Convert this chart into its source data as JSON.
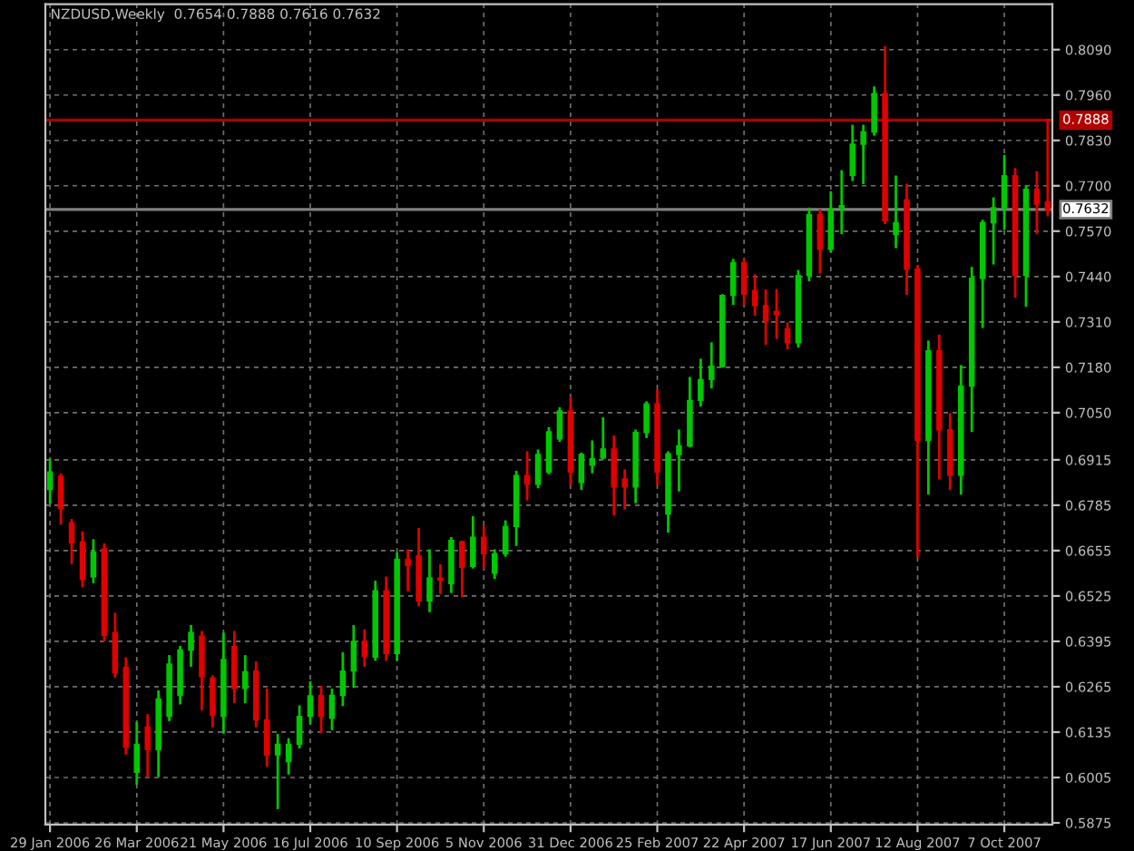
{
  "chart_data": {
    "type": "candlestick",
    "title": "NZDUSD,Weekly  0.7654 0.7888 0.7616 0.7632",
    "x": [
      "2006-01-29",
      "2006-02-05",
      "2006-02-12",
      "2006-02-19",
      "2006-02-26",
      "2006-03-05",
      "2006-03-12",
      "2006-03-19",
      "2006-03-26",
      "2006-04-02",
      "2006-04-09",
      "2006-04-16",
      "2006-04-23",
      "2006-04-30",
      "2006-05-07",
      "2006-05-14",
      "2006-05-21",
      "2006-05-28",
      "2006-06-04",
      "2006-06-11",
      "2006-06-18",
      "2006-06-25",
      "2006-07-02",
      "2006-07-09",
      "2006-07-16",
      "2006-07-23",
      "2006-07-30",
      "2006-08-06",
      "2006-08-13",
      "2006-08-20",
      "2006-08-27",
      "2006-09-03",
      "2006-09-10",
      "2006-09-17",
      "2006-09-24",
      "2006-10-01",
      "2006-10-08",
      "2006-10-15",
      "2006-10-22",
      "2006-10-29",
      "2006-11-05",
      "2006-11-12",
      "2006-11-19",
      "2006-11-26",
      "2006-12-03",
      "2006-12-10",
      "2006-12-17",
      "2006-12-24",
      "2006-12-31",
      "2007-01-07",
      "2007-01-14",
      "2007-01-21",
      "2007-01-28",
      "2007-02-04",
      "2007-02-11",
      "2007-02-18",
      "2007-02-25",
      "2007-03-04",
      "2007-03-11",
      "2007-03-18",
      "2007-03-25",
      "2007-04-01",
      "2007-04-08",
      "2007-04-15",
      "2007-04-22",
      "2007-04-29",
      "2007-05-06",
      "2007-05-13",
      "2007-05-20",
      "2007-05-27",
      "2007-06-03",
      "2007-06-10",
      "2007-06-17",
      "2007-06-24",
      "2007-07-01",
      "2007-07-08",
      "2007-07-15",
      "2007-07-22",
      "2007-07-29",
      "2007-08-05",
      "2007-08-12",
      "2007-08-19",
      "2007-08-26",
      "2007-09-02",
      "2007-09-09",
      "2007-09-16",
      "2007-09-23",
      "2007-09-30",
      "2007-10-07",
      "2007-10-14",
      "2007-10-21",
      "2007-10-28",
      "2007-11-04"
    ],
    "xlim": [
      "2006-01-26",
      "2007-11-07"
    ],
    "xticks": [
      {
        "value": "2006-01-29",
        "label": "29 Jan 2006"
      },
      {
        "value": "2006-03-26",
        "label": "26 Mar 2006"
      },
      {
        "value": "2006-05-21",
        "label": "21 May 2006"
      },
      {
        "value": "2006-07-16",
        "label": "16 Jul 2006"
      },
      {
        "value": "2006-09-10",
        "label": "10 Sep 2006"
      },
      {
        "value": "2006-11-05",
        "label": "5 Nov 2006"
      },
      {
        "value": "2006-12-31",
        "label": "31 Dec 2006"
      },
      {
        "value": "2007-02-25",
        "label": "25 Feb 2007"
      },
      {
        "value": "2007-04-22",
        "label": "22 Apr 2007"
      },
      {
        "value": "2007-06-17",
        "label": "17 Jun 2007"
      },
      {
        "value": "2007-08-12",
        "label": "12 Aug 2007"
      },
      {
        "value": "2007-10-07",
        "label": "7 Oct 2007"
      }
    ],
    "ohlc": [
      [
        0.683,
        0.6915,
        0.6793,
        0.688
      ],
      [
        0.6868,
        0.6872,
        0.6733,
        0.6776
      ],
      [
        0.6735,
        0.6742,
        0.662,
        0.6677
      ],
      [
        0.668,
        0.6707,
        0.6554,
        0.6572
      ],
      [
        0.658,
        0.6684,
        0.6565,
        0.6651
      ],
      [
        0.666,
        0.6672,
        0.6398,
        0.6412
      ],
      [
        0.642,
        0.6473,
        0.6294,
        0.6305
      ],
      [
        0.632,
        0.6346,
        0.6074,
        0.6092
      ],
      [
        0.602,
        0.6161,
        0.5988,
        0.61
      ],
      [
        0.615,
        0.6183,
        0.601,
        0.6085
      ],
      [
        0.6085,
        0.6251,
        0.601,
        0.623
      ],
      [
        0.618,
        0.6352,
        0.617,
        0.633
      ],
      [
        0.624,
        0.6378,
        0.6218,
        0.637
      ],
      [
        0.637,
        0.6438,
        0.6326,
        0.642
      ],
      [
        0.641,
        0.6421,
        0.6201,
        0.6294
      ],
      [
        0.629,
        0.6294,
        0.6152,
        0.6183
      ],
      [
        0.618,
        0.6416,
        0.6135,
        0.6343
      ],
      [
        0.638,
        0.6421,
        0.6222,
        0.626
      ],
      [
        0.626,
        0.6352,
        0.6222,
        0.6308
      ],
      [
        0.631,
        0.6334,
        0.6152,
        0.617
      ],
      [
        0.617,
        0.6256,
        0.604,
        0.6069
      ],
      [
        0.607,
        0.6126,
        0.5918,
        0.61
      ],
      [
        0.605,
        0.6114,
        0.6017,
        0.61
      ],
      [
        0.61,
        0.6208,
        0.6092,
        0.618
      ],
      [
        0.618,
        0.6277,
        0.6161,
        0.6239
      ],
      [
        0.624,
        0.6264,
        0.6135,
        0.618
      ],
      [
        0.6175,
        0.6256,
        0.6144,
        0.624
      ],
      [
        0.624,
        0.636,
        0.6213,
        0.631
      ],
      [
        0.631,
        0.6438,
        0.6265,
        0.6395
      ],
      [
        0.6395,
        0.6426,
        0.6326,
        0.6352
      ],
      [
        0.635,
        0.6565,
        0.6343,
        0.654
      ],
      [
        0.654,
        0.6577,
        0.6343,
        0.636
      ],
      [
        0.636,
        0.6646,
        0.6343,
        0.663
      ],
      [
        0.663,
        0.6655,
        0.6542,
        0.6612
      ],
      [
        0.664,
        0.6716,
        0.6499,
        0.651
      ],
      [
        0.651,
        0.6655,
        0.6482,
        0.6577
      ],
      [
        0.6577,
        0.6612,
        0.6534,
        0.657
      ],
      [
        0.656,
        0.669,
        0.6537,
        0.6684
      ],
      [
        0.668,
        0.668,
        0.6525,
        0.6607
      ],
      [
        0.661,
        0.675,
        0.6607,
        0.6693
      ],
      [
        0.6693,
        0.6724,
        0.6607,
        0.6646
      ],
      [
        0.659,
        0.6655,
        0.6577,
        0.6646
      ],
      [
        0.6646,
        0.6738,
        0.6641,
        0.6724
      ],
      [
        0.6724,
        0.688,
        0.6672,
        0.687
      ],
      [
        0.687,
        0.6936,
        0.6802,
        0.6845
      ],
      [
        0.6845,
        0.6941,
        0.6837,
        0.693
      ],
      [
        0.688,
        0.7005,
        0.6877,
        0.6995
      ],
      [
        0.6975,
        0.7062,
        0.697,
        0.7055
      ],
      [
        0.7055,
        0.7092,
        0.6845,
        0.688
      ],
      [
        0.685,
        0.6932,
        0.6832,
        0.693
      ],
      [
        0.69,
        0.6967,
        0.688,
        0.6918
      ],
      [
        0.692,
        0.7033,
        0.692,
        0.6946
      ],
      [
        0.6946,
        0.6981,
        0.6759,
        0.6837
      ],
      [
        0.686,
        0.6884,
        0.6776,
        0.6837
      ],
      [
        0.6837,
        0.6998,
        0.6794,
        0.6993
      ],
      [
        0.6993,
        0.7079,
        0.6981,
        0.7075
      ],
      [
        0.7075,
        0.7114,
        0.6845,
        0.688
      ],
      [
        0.676,
        0.6936,
        0.671,
        0.6932
      ],
      [
        0.693,
        0.6998,
        0.6828,
        0.6955
      ],
      [
        0.6955,
        0.7149,
        0.6955,
        0.7085
      ],
      [
        0.7085,
        0.7201,
        0.7071,
        0.7145
      ],
      [
        0.7145,
        0.7248,
        0.7123,
        0.7183
      ],
      [
        0.7183,
        0.7386,
        0.7183,
        0.7386
      ],
      [
        0.7386,
        0.7487,
        0.7362,
        0.748
      ],
      [
        0.748,
        0.7487,
        0.736,
        0.739
      ],
      [
        0.74,
        0.7443,
        0.7331,
        0.7357
      ],
      [
        0.7357,
        0.74,
        0.7248,
        0.7313
      ],
      [
        0.734,
        0.74,
        0.7265,
        0.7331
      ],
      [
        0.729,
        0.7305,
        0.7235,
        0.725
      ],
      [
        0.725,
        0.7455,
        0.724,
        0.7443
      ],
      [
        0.7443,
        0.7634,
        0.743,
        0.7617
      ],
      [
        0.7617,
        0.7629,
        0.7452,
        0.7518
      ],
      [
        0.7518,
        0.7681,
        0.7513,
        0.7634
      ],
      [
        0.7634,
        0.7741,
        0.7565,
        0.7643
      ],
      [
        0.773,
        0.7871,
        0.7717,
        0.7819
      ],
      [
        0.7819,
        0.7871,
        0.7708,
        0.7854
      ],
      [
        0.7854,
        0.7981,
        0.7847,
        0.7964
      ],
      [
        0.7964,
        0.8097,
        0.7594,
        0.76
      ],
      [
        0.756,
        0.7726,
        0.7525,
        0.7594
      ],
      [
        0.766,
        0.7702,
        0.7391,
        0.7461
      ],
      [
        0.7461,
        0.747,
        0.6638,
        0.697
      ],
      [
        0.697,
        0.7253,
        0.6819,
        0.7227
      ],
      [
        0.7227,
        0.727,
        0.6863,
        0.7001
      ],
      [
        0.7001,
        0.7045,
        0.6832,
        0.6871
      ],
      [
        0.6871,
        0.7183,
        0.6819,
        0.7126
      ],
      [
        0.7126,
        0.7464,
        0.6998,
        0.7435
      ],
      [
        0.7435,
        0.7599,
        0.7296,
        0.7594
      ],
      [
        0.7594,
        0.7663,
        0.7478,
        0.7637
      ],
      [
        0.7637,
        0.7785,
        0.7577,
        0.7729
      ],
      [
        0.7729,
        0.7747,
        0.7383,
        0.7443
      ],
      [
        0.7443,
        0.7698,
        0.7357,
        0.769
      ],
      [
        0.769,
        0.7738,
        0.7565,
        0.7647
      ],
      [
        0.7654,
        0.7888,
        0.7616,
        0.7632
      ]
    ],
    "colors": [
      "#00c800",
      "#e00000",
      "#e00000",
      "#e00000",
      "#00c800",
      "#e00000",
      "#e00000",
      "#e00000",
      "#00c800",
      "#e00000",
      "#00c800",
      "#00c800",
      "#00c800",
      "#00c800",
      "#e00000",
      "#e00000",
      "#00c800",
      "#e00000",
      "#00c800",
      "#e00000",
      "#e00000",
      "#00c800",
      "#00c800",
      "#00c800",
      "#00c800",
      "#e00000",
      "#00c800",
      "#00c800",
      "#00c800",
      "#e00000",
      "#00c800",
      "#e00000",
      "#00c800",
      "#e00000",
      "#e00000",
      "#00c800",
      "#e00000",
      "#00c800",
      "#e00000",
      "#00c800",
      "#e00000",
      "#00c800",
      "#00c800",
      "#00c800",
      "#e00000",
      "#00c800",
      "#00c800",
      "#00c800",
      "#e00000",
      "#00c800",
      "#00c800",
      "#00c800",
      "#e00000",
      "#e00000",
      "#00c800",
      "#00c800",
      "#e00000",
      "#00c800",
      "#00c800",
      "#00c800",
      "#00c800",
      "#00c800",
      "#00c800",
      "#00c800",
      "#e00000",
      "#e00000",
      "#e00000",
      "#e00000",
      "#e00000",
      "#00c800",
      "#00c800",
      "#e00000",
      "#00c800",
      "#00c800",
      "#00c800",
      "#00c800",
      "#00c800",
      "#e00000",
      "#00c800",
      "#e00000",
      "#e00000",
      "#00c800",
      "#e00000",
      "#e00000",
      "#00c800",
      "#00c800",
      "#00c800",
      "#00c800",
      "#00c800",
      "#e00000",
      "#00c800",
      "#e00000",
      "#e00000"
    ],
    "ylim": [
      0.587,
      0.822
    ],
    "yticks": [
      {
        "value": 0.809,
        "label": "0.8090"
      },
      {
        "value": 0.796,
        "label": "0.7960"
      },
      {
        "value": 0.783,
        "label": "0.7830"
      },
      {
        "value": 0.77,
        "label": "0.7700"
      },
      {
        "value": 0.757,
        "label": "0.7570"
      },
      {
        "value": 0.744,
        "label": "0.7440"
      },
      {
        "value": 0.731,
        "label": "0.7310"
      },
      {
        "value": 0.718,
        "label": "0.7180"
      },
      {
        "value": 0.705,
        "label": "0.7050"
      },
      0.6915,
      0.6785,
      0.6655,
      0.6525,
      0.6395,
      0.6265,
      0.6135,
      0.6005,
      0.5875
    ],
    "ref_lines": [
      {
        "axis": "y",
        "value": 0.7888,
        "label": "0.7888",
        "color": "#b00000"
      },
      {
        "axis": "y",
        "value": 0.7632,
        "label": "0.7632",
        "color": "#808080"
      }
    ],
    "grid": true
  }
}
